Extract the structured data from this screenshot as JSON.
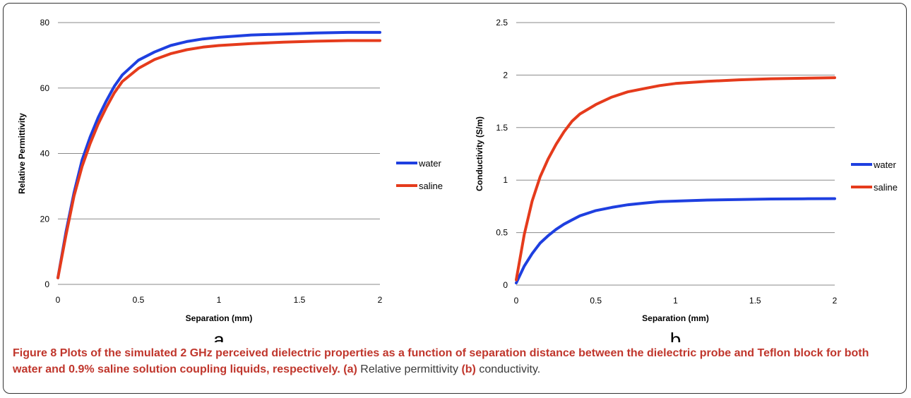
{
  "chart_data": [
    {
      "type": "line",
      "panel": "a",
      "xlabel": "Separation (mm)",
      "ylabel": "Relative Permittivity",
      "xlim": [
        0,
        2
      ],
      "ylim": [
        0,
        80
      ],
      "xticks": [
        "0",
        "0.5",
        "1",
        "1.5",
        "2"
      ],
      "yticks": [
        "0",
        "20",
        "40",
        "60",
        "80"
      ],
      "grid": "horizontal",
      "legend": "right",
      "series": [
        {
          "name": "water",
          "color": "#1e3fe0",
          "x": [
            0,
            0.05,
            0.1,
            0.15,
            0.2,
            0.25,
            0.3,
            0.35,
            0.4,
            0.5,
            0.6,
            0.7,
            0.8,
            0.9,
            1.0,
            1.2,
            1.4,
            1.6,
            1.8,
            2.0
          ],
          "y": [
            2,
            16,
            28,
            38,
            45,
            51,
            56,
            60.5,
            64,
            68.5,
            71,
            73,
            74.2,
            75,
            75.5,
            76.2,
            76.5,
            76.8,
            77,
            77
          ]
        },
        {
          "name": "saline",
          "color": "#e53b1c",
          "x": [
            0,
            0.05,
            0.1,
            0.15,
            0.2,
            0.25,
            0.3,
            0.35,
            0.4,
            0.5,
            0.6,
            0.7,
            0.8,
            0.9,
            1.0,
            1.2,
            1.4,
            1.6,
            1.8,
            2.0
          ],
          "y": [
            2,
            15,
            27,
            36,
            43,
            49,
            54,
            58.5,
            62,
            66,
            68.7,
            70.5,
            71.7,
            72.5,
            73,
            73.6,
            74,
            74.3,
            74.5,
            74.5
          ]
        }
      ]
    },
    {
      "type": "line",
      "panel": "b",
      "xlabel": "Separation (mm)",
      "ylabel": "Conductivity (S/m)",
      "xlim": [
        0,
        2
      ],
      "ylim": [
        0,
        2.5
      ],
      "xticks": [
        "0",
        "0.5",
        "1",
        "1.5",
        "2"
      ],
      "yticks": [
        "0",
        "0.5",
        "1",
        "1.5",
        "2",
        "2.5"
      ],
      "grid": "horizontal",
      "legend": "right",
      "series": [
        {
          "name": "water",
          "color": "#1e3fe0",
          "x": [
            0,
            0.05,
            0.1,
            0.15,
            0.2,
            0.25,
            0.3,
            0.35,
            0.4,
            0.5,
            0.6,
            0.7,
            0.8,
            0.9,
            1.0,
            1.2,
            1.4,
            1.6,
            1.8,
            2.0
          ],
          "y": [
            0.02,
            0.18,
            0.3,
            0.4,
            0.47,
            0.53,
            0.58,
            0.62,
            0.66,
            0.71,
            0.74,
            0.765,
            0.78,
            0.795,
            0.8,
            0.81,
            0.815,
            0.82,
            0.822,
            0.823
          ]
        },
        {
          "name": "saline",
          "color": "#e53b1c",
          "x": [
            0,
            0.05,
            0.1,
            0.15,
            0.2,
            0.25,
            0.3,
            0.35,
            0.4,
            0.5,
            0.6,
            0.7,
            0.8,
            0.9,
            1.0,
            1.2,
            1.4,
            1.6,
            1.8,
            2.0
          ],
          "y": [
            0.05,
            0.48,
            0.8,
            1.03,
            1.2,
            1.34,
            1.46,
            1.56,
            1.63,
            1.72,
            1.79,
            1.84,
            1.87,
            1.9,
            1.92,
            1.94,
            1.955,
            1.965,
            1.97,
            1.975
          ]
        }
      ]
    }
  ],
  "caption": {
    "figure_label": "Figure 8",
    "title": "Plots of the simulated 2 GHz perceived dielectric properties as a function of separation distance between the dielectric probe and Teflon block for both water and 0.9% saline solution coupling liquids, respectively.",
    "ref_a": "(a)",
    "text_a": "Relative permittivity",
    "ref_b": "(b)",
    "text_b": "conductivity."
  }
}
